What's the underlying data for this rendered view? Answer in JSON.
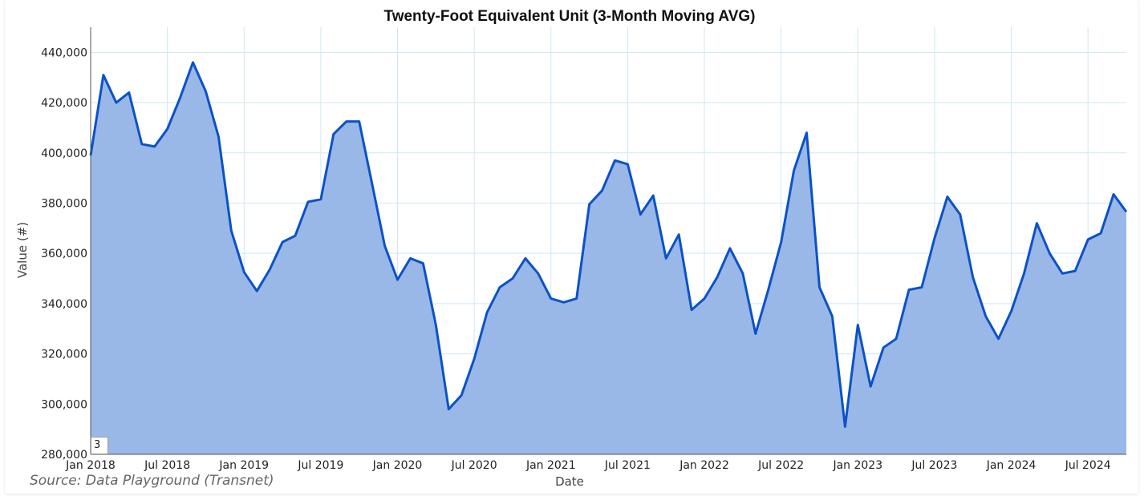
{
  "source_note": "Source: Data Playground (Transnet)",
  "window_input": {
    "value": "3"
  },
  "chart_data": {
    "type": "area",
    "title": "Twenty-Foot Equivalent Unit (3-Month Moving AVG)",
    "xlabel": "Date",
    "ylabel": "Value (#)",
    "ylim": [
      280000,
      450000
    ],
    "yticks": [
      280000,
      300000,
      320000,
      340000,
      360000,
      380000,
      400000,
      420000,
      440000
    ],
    "ytick_labels": [
      "280,000",
      "300,000",
      "320,000",
      "340,000",
      "360,000",
      "380,000",
      "400,000",
      "420,000",
      "440,000"
    ],
    "xlim": [
      "2018-01",
      "2024-10"
    ],
    "xticks": [
      "2018-01",
      "2018-07",
      "2019-01",
      "2019-07",
      "2020-01",
      "2020-07",
      "2021-01",
      "2021-07",
      "2022-01",
      "2022-07",
      "2023-01",
      "2023-07",
      "2024-01",
      "2024-07"
    ],
    "xtick_labels": [
      "Jan 2018",
      "Jul 2018",
      "Jan 2019",
      "Jul 2019",
      "Jan 2020",
      "Jul 2020",
      "Jan 2021",
      "Jul 2021",
      "Jan 2022",
      "Jul 2022",
      "Jan 2023",
      "Jul 2023",
      "Jan 2024",
      "Jul 2024"
    ],
    "grid": true,
    "line_color": "#0b52c7",
    "fill_color": "#99b8e7",
    "series": [
      {
        "x": [
          "2018-01",
          "2018-02",
          "2018-03",
          "2018-04",
          "2018-05",
          "2018-06",
          "2018-07",
          "2018-08",
          "2018-09",
          "2018-10",
          "2018-11",
          "2018-12",
          "2019-01",
          "2019-02",
          "2019-03",
          "2019-04",
          "2019-05",
          "2019-06",
          "2019-07",
          "2019-08",
          "2019-09",
          "2019-10",
          "2019-11",
          "2019-12",
          "2020-01",
          "2020-02",
          "2020-03",
          "2020-04",
          "2020-05",
          "2020-06",
          "2020-07",
          "2020-08",
          "2020-09",
          "2020-10",
          "2020-11",
          "2020-12",
          "2021-01",
          "2021-02",
          "2021-03",
          "2021-04",
          "2021-05",
          "2021-06",
          "2021-07",
          "2021-08",
          "2021-09",
          "2021-10",
          "2021-11",
          "2021-12",
          "2022-01",
          "2022-02",
          "2022-03",
          "2022-04",
          "2022-05",
          "2022-06",
          "2022-07",
          "2022-08",
          "2022-09",
          "2022-10",
          "2022-11",
          "2022-12",
          "2023-01",
          "2023-02",
          "2023-03",
          "2023-04",
          "2023-05",
          "2023-06",
          "2023-07",
          "2023-08",
          "2023-09",
          "2023-10",
          "2023-11",
          "2023-12",
          "2024-01",
          "2024-02",
          "2024-03",
          "2024-04",
          "2024-05",
          "2024-06",
          "2024-07",
          "2024-08",
          "2024-09",
          "2024-10"
        ],
        "values": [
          399000,
          431000,
          420000,
          424000,
          403500,
          402500,
          409500,
          422000,
          436000,
          424500,
          406500,
          369000,
          352500,
          345000,
          353500,
          364500,
          367000,
          380500,
          381500,
          407500,
          412500,
          412500,
          388000,
          363000,
          349500,
          358000,
          356000,
          331500,
          298000,
          303500,
          318000,
          336500,
          346500,
          350000,
          358000,
          352000,
          342000,
          340500,
          342000,
          379500,
          385000,
          397000,
          395500,
          375500,
          383000,
          358000,
          367500,
          337500,
          342000,
          350500,
          362000,
          352000,
          328000,
          345500,
          364500,
          393000,
          408000,
          346500,
          335000,
          291000,
          331500,
          307000,
          322500,
          326000,
          345500,
          346500,
          366000,
          382500,
          375500,
          350500,
          335000,
          326000,
          337000,
          352000,
          372000,
          360000,
          352000,
          353000,
          365500,
          368000,
          383500,
          376500
        ]
      }
    ]
  }
}
